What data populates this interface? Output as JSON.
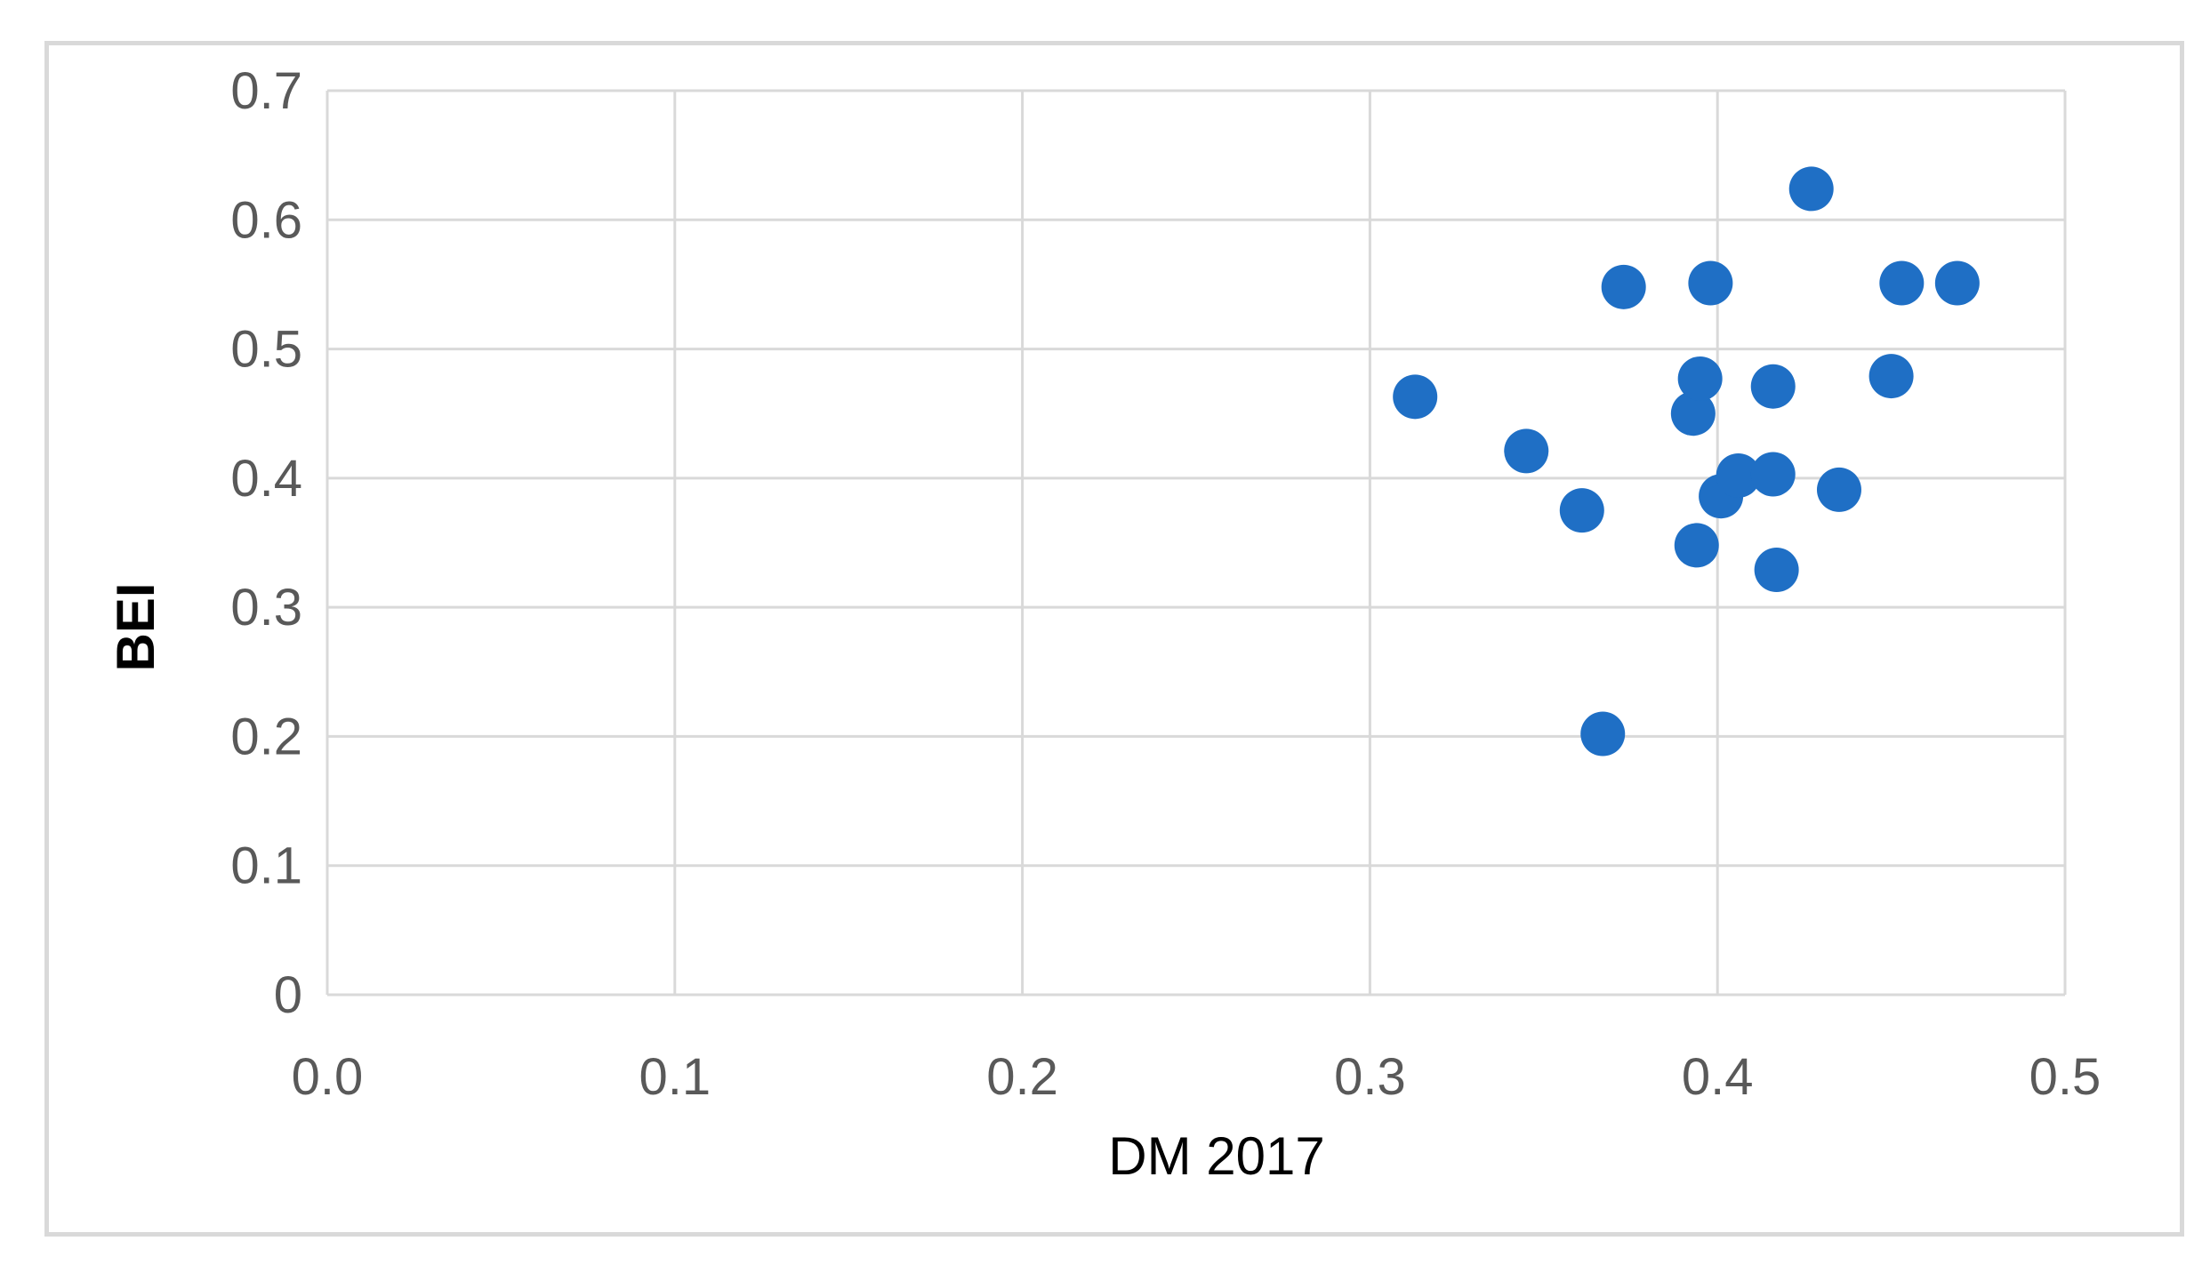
{
  "chart_data": {
    "type": "scatter",
    "title": "",
    "xlabel": "DM 2017",
    "ylabel": "BEI",
    "xlim": [
      0.0,
      0.5
    ],
    "ylim": [
      0,
      0.7
    ],
    "x_ticks": [
      "0.0",
      "0.1",
      "0.2",
      "0.3",
      "0.4",
      "0.5"
    ],
    "y_ticks": [
      "0",
      "0.1",
      "0.2",
      "0.3",
      "0.4",
      "0.5",
      "0.6",
      "0.7"
    ],
    "grid": true,
    "legend": "none",
    "marker_color": "#1f6fc5",
    "series": [
      {
        "points": [
          {
            "x": 0.313,
            "y": 0.463
          },
          {
            "x": 0.345,
            "y": 0.421
          },
          {
            "x": 0.361,
            "y": 0.375
          },
          {
            "x": 0.367,
            "y": 0.202
          },
          {
            "x": 0.373,
            "y": 0.548
          },
          {
            "x": 0.393,
            "y": 0.45
          },
          {
            "x": 0.394,
            "y": 0.348
          },
          {
            "x": 0.395,
            "y": 0.477
          },
          {
            "x": 0.398,
            "y": 0.551
          },
          {
            "x": 0.401,
            "y": 0.386
          },
          {
            "x": 0.406,
            "y": 0.402
          },
          {
            "x": 0.416,
            "y": 0.471
          },
          {
            "x": 0.416,
            "y": 0.403
          },
          {
            "x": 0.417,
            "y": 0.329
          },
          {
            "x": 0.427,
            "y": 0.624
          },
          {
            "x": 0.435,
            "y": 0.391
          },
          {
            "x": 0.45,
            "y": 0.479
          },
          {
            "x": 0.453,
            "y": 0.551
          },
          {
            "x": 0.469,
            "y": 0.551
          }
        ]
      }
    ]
  }
}
